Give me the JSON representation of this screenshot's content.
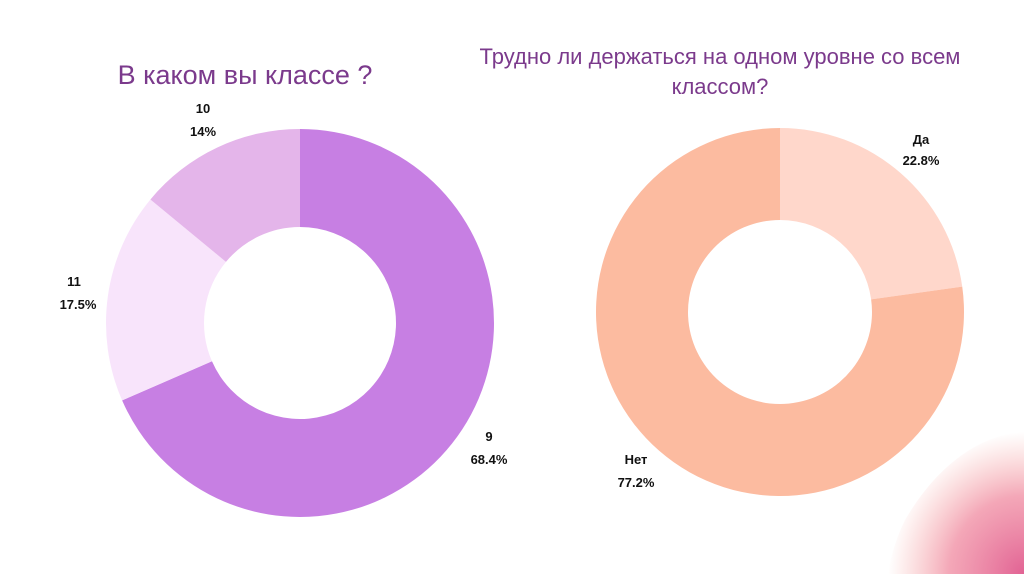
{
  "colors": {
    "title": "#7b3a8c",
    "label": "#111111",
    "background": "#ffffff",
    "decoration_start": "#f7a9a0",
    "decoration_end": "#e05a8e"
  },
  "chart_data": [
    {
      "type": "pie",
      "variant": "donut",
      "title": "В каком вы классе ?",
      "slices": [
        {
          "name": "9",
          "value": 68.4,
          "label": "68.4%",
          "color": "#c77fe3"
        },
        {
          "name": "11",
          "value": 17.5,
          "label": "17.5%",
          "color": "#f8e4fb"
        },
        {
          "name": "10",
          "value": 14.0,
          "label": "14%",
          "color": "#e4b5ea"
        }
      ]
    },
    {
      "type": "pie",
      "variant": "donut",
      "title": "Трудно ли держаться на одном уровне со всем классом?",
      "slices": [
        {
          "name": "Да",
          "value": 22.8,
          "label": "22.8%",
          "color": "#ffd7cb"
        },
        {
          "name": "Нет",
          "value": 77.2,
          "label": "77.2%",
          "color": "#fcbba0"
        }
      ]
    }
  ]
}
